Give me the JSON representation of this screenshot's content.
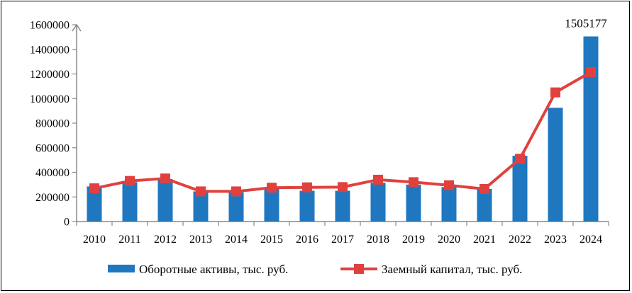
{
  "chart_data": {
    "type": "bar",
    "categories": [
      "2010",
      "2011",
      "2012",
      "2013",
      "2014",
      "2015",
      "2016",
      "2017",
      "2018",
      "2019",
      "2020",
      "2021",
      "2022",
      "2023",
      "2024"
    ],
    "series": [
      {
        "name": "Оборотные активы, тыс. руб.",
        "type": "bar",
        "color": "#1F77C0",
        "values": [
          285000,
          320000,
          345000,
          245000,
          238000,
          265000,
          250000,
          250000,
          315000,
          300000,
          280000,
          265000,
          535000,
          925000,
          1505177
        ]
      },
      {
        "name": "Заемный капитал, тыс. руб.",
        "type": "line",
        "color": "#E0413F",
        "values": [
          270000,
          330000,
          350000,
          245000,
          245000,
          275000,
          278000,
          280000,
          340000,
          320000,
          295000,
          265000,
          510000,
          1050000,
          1215000
        ]
      }
    ],
    "data_labels": [
      {
        "category": "2024",
        "series": 0,
        "text": "1505177"
      }
    ],
    "yticks": [
      "0",
      "200000",
      "400000",
      "600000",
      "800000",
      "1000000",
      "1200000",
      "1400000",
      "1600000"
    ],
    "ylim": [
      0,
      1600000
    ],
    "legend_position": "bottom",
    "grid": false
  }
}
